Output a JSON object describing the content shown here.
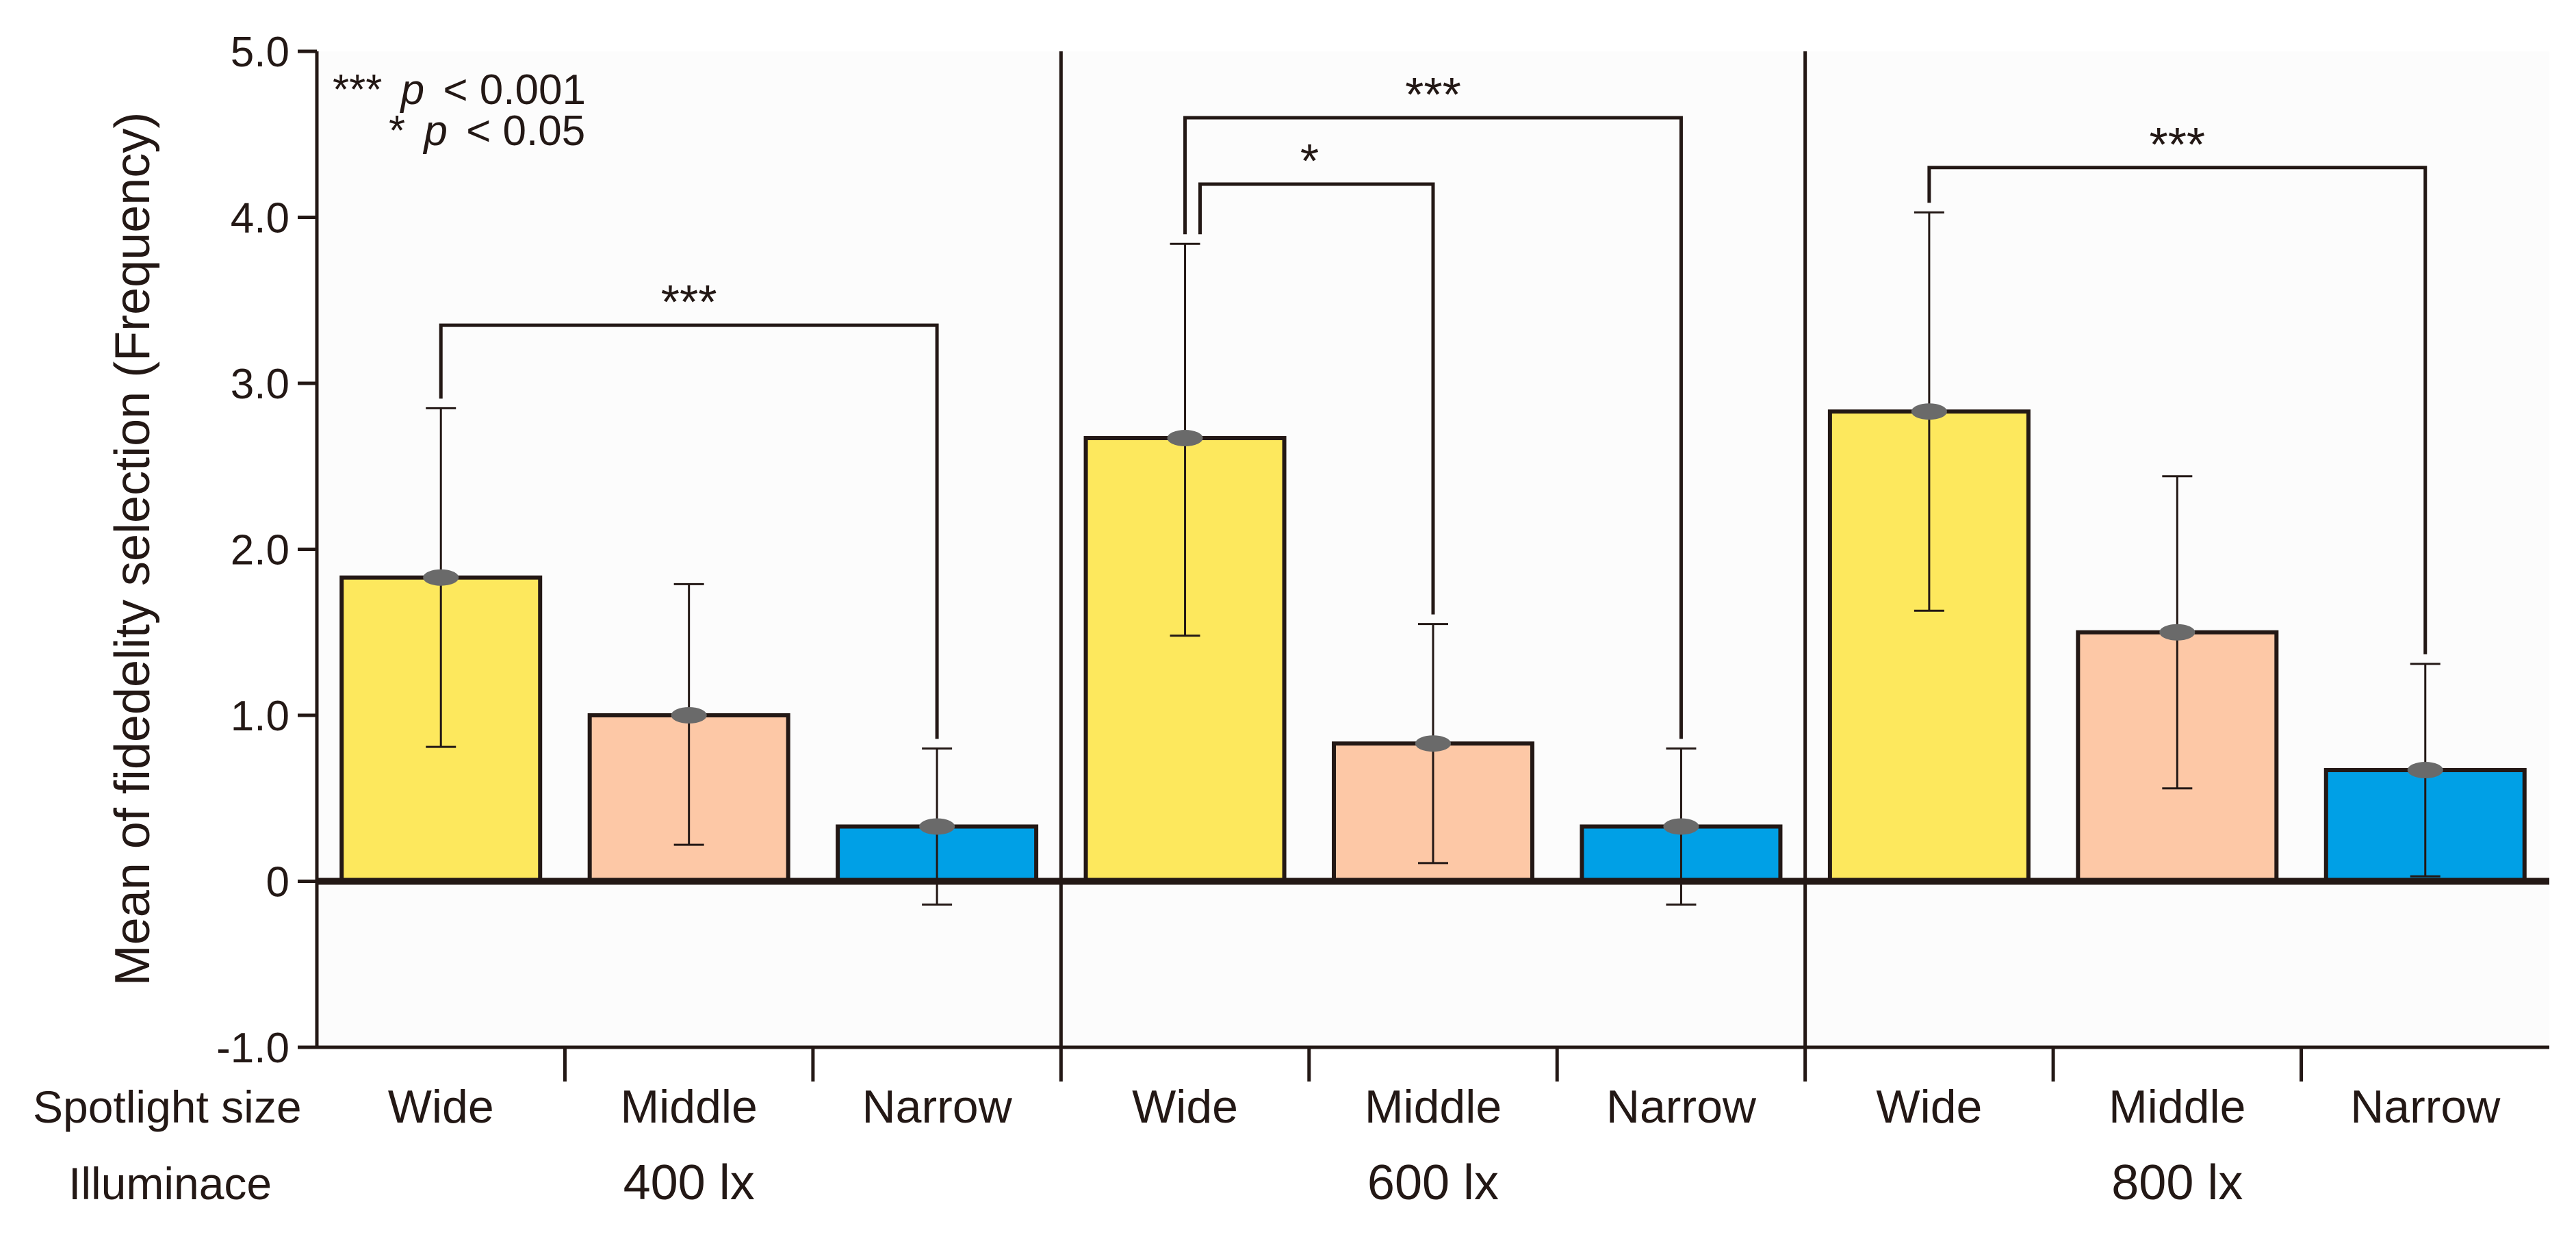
{
  "chart_data": {
    "type": "bar",
    "ylabel": "Mean of fidedelity selection (Frequency)",
    "ylim": [
      -1.0,
      5.0
    ],
    "yticks": [
      {
        "value": 5.0,
        "label": "5.0"
      },
      {
        "value": 4.0,
        "label": "4.0"
      },
      {
        "value": 3.0,
        "label": "3.0"
      },
      {
        "value": 2.0,
        "label": "2.0"
      },
      {
        "value": 1.0,
        "label": "1.0"
      },
      {
        "value": 0,
        "label": "0"
      },
      {
        "value": -1.0,
        "label": "-1.0"
      }
    ],
    "row_labels": {
      "size": "Spotlight size",
      "illuminance": "Illuminace"
    },
    "legend": {
      "line1_stars": "***",
      "line1_p": "p",
      "line1_rest": "< 0.001",
      "line2_stars": "*",
      "line2_p": "p",
      "line2_rest": "< 0.05"
    },
    "colors": {
      "Wide": "#fde85d",
      "Middle": "#fdc8a6",
      "Narrow": "#00a0e6",
      "axis": "#231815",
      "panel_bg": "#fcfcfc"
    },
    "groups": [
      {
        "name": "400 lx",
        "bars": [
          {
            "label": "Wide",
            "value": 1.83,
            "err_high": 2.85,
            "err_low": 0.81
          },
          {
            "label": "Middle",
            "value": 1.0,
            "err_high": 1.79,
            "err_low": 0.22
          },
          {
            "label": "Narrow",
            "value": 0.33,
            "err_high": 0.8,
            "err_low": -0.14
          }
        ],
        "significance": [
          {
            "from": 0,
            "to": 2,
            "label": "***",
            "level": 3.35
          }
        ]
      },
      {
        "name": "600 lx",
        "bars": [
          {
            "label": "Wide",
            "value": 2.67,
            "err_high": 3.84,
            "err_low": 1.48
          },
          {
            "label": "Middle",
            "value": 0.83,
            "err_high": 1.55,
            "err_low": 0.11
          },
          {
            "label": "Narrow",
            "value": 0.33,
            "err_high": 0.8,
            "err_low": -0.14
          }
        ],
        "significance": [
          {
            "from": 0,
            "to": 2,
            "label": "***",
            "level": 4.6
          },
          {
            "from": 0,
            "to": 1,
            "label": "*",
            "level": 4.2
          }
        ]
      },
      {
        "name": "800 lx",
        "bars": [
          {
            "label": "Wide",
            "value": 2.83,
            "err_high": 4.03,
            "err_low": 1.63
          },
          {
            "label": "Middle",
            "value": 1.5,
            "err_high": 2.44,
            "err_low": 0.56
          },
          {
            "label": "Narrow",
            "value": 0.67,
            "err_high": 1.31,
            "err_low": 0.03
          }
        ],
        "significance": [
          {
            "from": 0,
            "to": 2,
            "label": "***",
            "level": 4.3
          }
        ]
      }
    ]
  }
}
